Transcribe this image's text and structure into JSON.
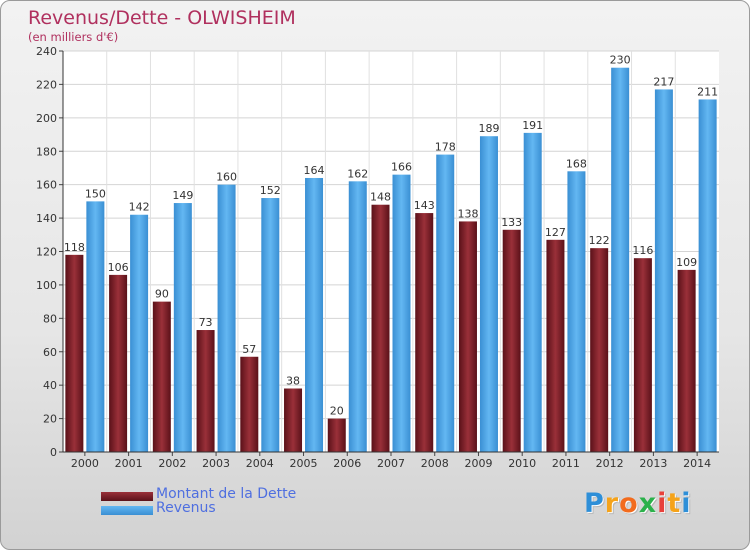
{
  "title": "Revenus/Dette - OLWISHEIM",
  "subtitle": "(en milliers d'€)",
  "logo": {
    "letters": [
      "P",
      "r",
      "o",
      "x",
      "i",
      "t",
      "i"
    ],
    "colors": [
      "#2e8fd8",
      "#f5a31a",
      "#f26b1d",
      "#2bb14b",
      "#e8403a",
      "#f5a31a",
      "#2e8fd8"
    ]
  },
  "legend": [
    {
      "label": "Montant de la Dette",
      "color": "#7a1f28"
    },
    {
      "label": "Revenus",
      "color": "#4aa3e6"
    }
  ],
  "chart_data": {
    "type": "bar",
    "categories": [
      "2000",
      "2001",
      "2002",
      "2003",
      "2004",
      "2005",
      "2006",
      "2007",
      "2008",
      "2009",
      "2010",
      "2011",
      "2012",
      "2013",
      "2014"
    ],
    "series": [
      {
        "name": "Montant de la Dette",
        "color": "#7a1f28",
        "values": [
          118,
          106,
          90,
          73,
          57,
          38,
          20,
          148,
          143,
          138,
          133,
          127,
          122,
          116,
          109
        ]
      },
      {
        "name": "Revenus",
        "color": "#4aa3e6",
        "values": [
          150,
          142,
          149,
          160,
          152,
          164,
          162,
          166,
          178,
          189,
          191,
          168,
          230,
          217,
          211
        ]
      }
    ],
    "ylim": [
      0,
      240
    ],
    "yticks": [
      0,
      20,
      40,
      60,
      80,
      100,
      120,
      140,
      160,
      180,
      200,
      220,
      240
    ],
    "grid": true,
    "legend_position": "bottom-left"
  }
}
